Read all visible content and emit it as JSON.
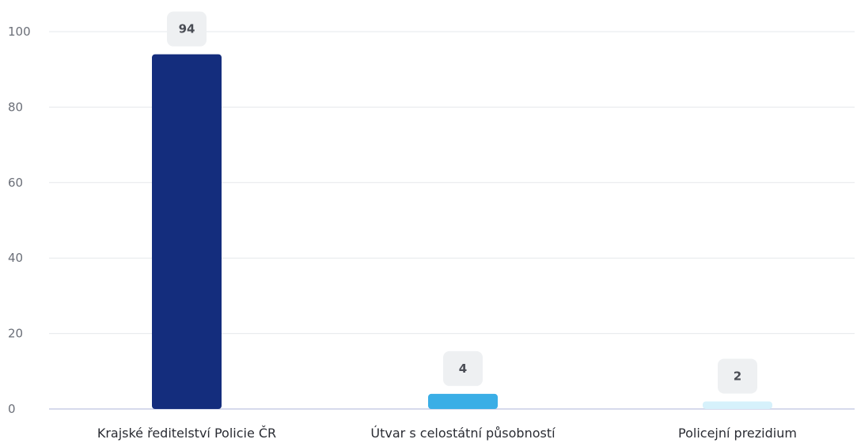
{
  "chart_data": {
    "type": "bar",
    "categories": [
      "Krajské ředitelství Policie ČR",
      "Útvar s celostátní působností",
      "Policejní prezidium"
    ],
    "values": [
      94,
      4,
      2
    ],
    "data_labels": [
      "94",
      "4",
      "2"
    ],
    "bar_colors": [
      "#142d7d",
      "#3aaee6",
      "#d6f1fb"
    ],
    "yticks": [
      0,
      20,
      40,
      60,
      80,
      100
    ],
    "ylim": [
      0,
      100
    ],
    "grid": true,
    "legend": "none"
  }
}
